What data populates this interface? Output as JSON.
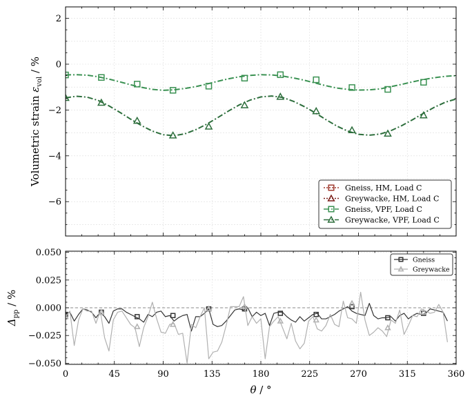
{
  "chart_data": [
    {
      "type": "line",
      "ylabel_main": "Volumetric strain ",
      "ylabel_symbol": "ε",
      "ylabel_subscript": "vol",
      "ylabel_unit": " / %",
      "xlim": [
        0,
        360
      ],
      "ylim": [
        -7.5,
        2.5
      ],
      "yticks": [
        2,
        0,
        -2,
        -4,
        -6
      ],
      "ytick_labels": [
        "2",
        "0",
        "−2",
        "−4",
        "−6"
      ],
      "grid": true,
      "legend_position": "lower-right",
      "series": [
        {
          "name": "Gneiss, HM, Load C",
          "color": "#a03a2f",
          "marker": "square",
          "linestyle": "dotted",
          "x": [],
          "y": []
        },
        {
          "name": "Greywacke, HM, Load C",
          "color": "#7a1f1a",
          "marker": "triangle",
          "linestyle": "dotted",
          "x": [],
          "y": []
        },
        {
          "name": "Gneiss, VPF, Load C",
          "color": "#3a9152",
          "marker": "square",
          "linestyle": "dashdot",
          "x": [
            0,
            10,
            20,
            30,
            40,
            50,
            60,
            70,
            80,
            90,
            100,
            110,
            120,
            130,
            140,
            150,
            160,
            170,
            180,
            190,
            200,
            210,
            220,
            230,
            240,
            250,
            260,
            270,
            280,
            290,
            300,
            310,
            320,
            330,
            340,
            350,
            360
          ],
          "y": [
            -0.47,
            -0.46,
            -0.48,
            -0.55,
            -0.65,
            -0.77,
            -0.9,
            -1.01,
            -1.1,
            -1.14,
            -1.12,
            -1.06,
            -0.98,
            -0.87,
            -0.75,
            -0.64,
            -0.55,
            -0.49,
            -0.46,
            -0.47,
            -0.52,
            -0.6,
            -0.7,
            -0.82,
            -0.94,
            -1.04,
            -1.1,
            -1.13,
            -1.12,
            -1.08,
            -0.98,
            -0.88,
            -0.77,
            -0.67,
            -0.59,
            -0.53,
            -0.5
          ],
          "marker_x": [
            0,
            33,
            66,
            99,
            132,
            165,
            198,
            231,
            264,
            297,
            330
          ],
          "marker_y": [
            -0.47,
            -0.58,
            -0.87,
            -1.14,
            -0.96,
            -0.61,
            -0.46,
            -0.68,
            -1.02,
            -1.1,
            -0.79
          ]
        },
        {
          "name": "Greywacke, VPF, Load C",
          "color": "#2d6e3c",
          "marker": "triangle",
          "linestyle": "dashdot",
          "x": [
            0,
            10,
            20,
            30,
            40,
            50,
            60,
            70,
            80,
            90,
            100,
            110,
            120,
            130,
            140,
            150,
            160,
            170,
            180,
            190,
            200,
            210,
            220,
            230,
            240,
            250,
            260,
            270,
            280,
            290,
            300,
            310,
            320,
            330,
            340,
            350,
            360
          ],
          "y": [
            -1.47,
            -1.4,
            -1.44,
            -1.58,
            -1.82,
            -2.1,
            -2.4,
            -2.68,
            -2.92,
            -3.08,
            -3.12,
            -3.04,
            -2.86,
            -2.62,
            -2.34,
            -2.05,
            -1.78,
            -1.57,
            -1.43,
            -1.39,
            -1.45,
            -1.62,
            -1.85,
            -2.12,
            -2.42,
            -2.7,
            -2.92,
            -3.06,
            -3.1,
            -3.05,
            -2.9,
            -2.68,
            -2.42,
            -2.14,
            -1.88,
            -1.66,
            -1.52
          ],
          "marker_x": [
            0,
            33,
            66,
            99,
            132,
            165,
            198,
            231,
            264,
            297,
            330
          ],
          "marker_y": [
            -1.47,
            -1.68,
            -2.47,
            -3.11,
            -2.72,
            -1.79,
            -1.42,
            -2.05,
            -2.88,
            -3.03,
            -2.23
          ]
        }
      ]
    },
    {
      "type": "line",
      "ylabel_symbol": "Δ",
      "ylabel_subscript": "pp",
      "ylabel_unit": " / %",
      "xlabel_symbol": "θ",
      "xlabel_unit": " / °",
      "xlim": [
        0,
        360
      ],
      "ylim": [
        -0.051,
        0.051
      ],
      "xticks": [
        0,
        45,
        90,
        135,
        180,
        225,
        270,
        315,
        360
      ],
      "xtick_labels": [
        "0",
        "45",
        "90",
        "135",
        "180",
        "225",
        "270",
        "315",
        "360"
      ],
      "yticks": [
        0.05,
        0.025,
        0.0,
        -0.025,
        -0.05
      ],
      "ytick_labels": [
        "0.050",
        "0.025",
        "0.000",
        "−0.025",
        "−0.050"
      ],
      "reference_line_y": 0,
      "grid": true,
      "legend_position": "upper-right",
      "series": [
        {
          "name": "Gneiss",
          "color": "#333333",
          "marker": "square",
          "x": [
            0,
            4,
            8,
            12,
            16,
            20,
            24,
            28,
            32,
            36,
            40,
            44,
            48,
            52,
            56,
            60,
            64,
            68,
            72,
            76,
            80,
            84,
            88,
            92,
            96,
            100,
            104,
            108,
            112,
            116,
            120,
            124,
            128,
            132,
            136,
            140,
            144,
            148,
            152,
            156,
            160,
            164,
            168,
            172,
            176,
            180,
            184,
            188,
            192,
            196,
            200,
            204,
            208,
            212,
            216,
            220,
            224,
            228,
            232,
            236,
            240,
            244,
            248,
            252,
            256,
            260,
            264,
            268,
            272,
            276,
            280,
            284,
            288,
            292,
            296,
            300,
            304,
            308,
            312,
            316,
            320,
            324,
            328,
            332,
            336,
            340,
            344,
            348,
            352
          ],
          "y": [
            -0.006,
            -0.004,
            -0.012,
            -0.006,
            -0.001,
            -0.002,
            -0.004,
            -0.009,
            -0.004,
            -0.008,
            -0.014,
            -0.003,
            -0.001,
            -0.001,
            -0.004,
            -0.006,
            -0.008,
            -0.01,
            -0.013,
            -0.006,
            -0.008,
            -0.004,
            -0.003,
            -0.008,
            -0.007,
            -0.012,
            -0.009,
            -0.007,
            -0.006,
            -0.021,
            -0.008,
            -0.008,
            -0.005,
            -0.001,
            -0.015,
            -0.017,
            -0.016,
            -0.012,
            -0.007,
            -0.002,
            -0.001,
            -0.002,
            0.0,
            -0.008,
            -0.004,
            -0.007,
            -0.005,
            -0.016,
            -0.005,
            -0.004,
            -0.004,
            -0.008,
            -0.011,
            -0.013,
            -0.008,
            -0.012,
            -0.009,
            -0.006,
            -0.005,
            -0.01,
            -0.01,
            -0.008,
            -0.006,
            -0.003,
            -0.001,
            0.001,
            -0.003,
            -0.005,
            -0.006,
            -0.007,
            0.004,
            -0.007,
            -0.01,
            -0.009,
            -0.009,
            -0.008,
            -0.012,
            -0.007,
            -0.005,
            -0.01,
            -0.007,
            -0.005,
            -0.006,
            -0.005,
            -0.001,
            -0.002,
            -0.003,
            -0.004,
            -0.012
          ],
          "marker_x": [
            0,
            33,
            66,
            99,
            132,
            165,
            198,
            231,
            264,
            297,
            330
          ],
          "marker_y": [
            -0.006,
            -0.004,
            -0.008,
            -0.007,
            -0.001,
            -0.001,
            -0.005,
            -0.006,
            0.001,
            -0.009,
            -0.005
          ]
        },
        {
          "name": "Greywacke",
          "color": "#b0b0b0",
          "marker": "triangle",
          "x": [
            0,
            4,
            8,
            12,
            16,
            20,
            24,
            28,
            32,
            36,
            40,
            44,
            48,
            52,
            56,
            60,
            64,
            68,
            72,
            76,
            80,
            84,
            88,
            92,
            96,
            100,
            104,
            108,
            112,
            116,
            120,
            124,
            128,
            132,
            136,
            140,
            144,
            148,
            152,
            156,
            160,
            164,
            168,
            172,
            176,
            180,
            184,
            188,
            192,
            196,
            200,
            204,
            208,
            212,
            216,
            220,
            224,
            228,
            232,
            236,
            240,
            244,
            248,
            252,
            256,
            260,
            264,
            268,
            272,
            276,
            280,
            284,
            288,
            292,
            296,
            300,
            304,
            308,
            312,
            316,
            320,
            324,
            328,
            332,
            336,
            340,
            344,
            348,
            352
          ],
          "y": [
            -0.008,
            -0.003,
            -0.034,
            -0.011,
            -0.001,
            -0.003,
            -0.003,
            -0.014,
            -0.003,
            -0.027,
            -0.039,
            -0.011,
            -0.004,
            -0.003,
            -0.009,
            -0.015,
            -0.018,
            -0.035,
            -0.018,
            -0.008,
            0.005,
            -0.01,
            -0.022,
            -0.023,
            -0.015,
            -0.014,
            -0.024,
            -0.023,
            -0.05,
            -0.015,
            -0.018,
            -0.008,
            0.0,
            -0.046,
            -0.04,
            -0.039,
            -0.031,
            -0.016,
            0.001,
            0.001,
            0.001,
            0.01,
            -0.016,
            -0.008,
            -0.014,
            -0.01,
            -0.046,
            -0.017,
            -0.012,
            -0.008,
            -0.018,
            -0.028,
            -0.014,
            -0.03,
            -0.037,
            -0.032,
            -0.012,
            -0.008,
            -0.019,
            -0.021,
            -0.016,
            -0.006,
            -0.015,
            -0.017,
            0.006,
            -0.009,
            -0.01,
            -0.014,
            0.014,
            -0.011,
            -0.025,
            -0.022,
            -0.018,
            -0.021,
            -0.026,
            -0.011,
            -0.014,
            -0.002,
            -0.024,
            -0.016,
            -0.007,
            -0.008,
            -0.001,
            -0.003,
            -0.005,
            -0.004,
            0.003,
            -0.004,
            -0.031
          ],
          "marker_x": [
            0,
            33,
            66,
            99,
            132,
            165,
            198,
            231,
            264,
            297,
            330
          ],
          "marker_y": [
            -0.008,
            -0.004,
            -0.017,
            -0.015,
            -0.001,
            0.001,
            -0.012,
            -0.011,
            0.004,
            -0.018,
            -0.004
          ]
        }
      ]
    }
  ]
}
